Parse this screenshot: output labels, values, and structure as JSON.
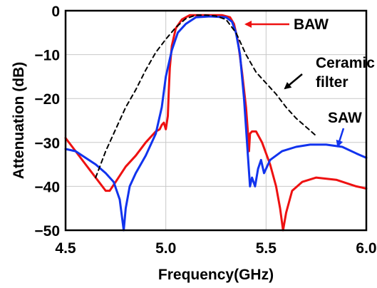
{
  "chart_data": {
    "type": "line",
    "title": "",
    "xlabel": "Frequency(GHz)",
    "ylabel": "Attenuation (dB)",
    "xlim": [
      4.5,
      6.0
    ],
    "ylim": [
      -50,
      0
    ],
    "x_ticks": [
      4.5,
      5.0,
      5.5,
      6.0
    ],
    "x_tick_labels": [
      "4.5",
      "5.0",
      "5.5",
      "6.0"
    ],
    "y_ticks": [
      0,
      -10,
      -20,
      -30,
      -40,
      -50
    ],
    "y_tick_labels": [
      "0",
      "−10",
      "−20",
      "−30",
      "−40",
      "−50"
    ],
    "grid": true,
    "legend": "none",
    "series": [
      {
        "name": "BAW",
        "color": "#ee1111",
        "style": "solid",
        "points": [
          [
            4.5,
            -29.0
          ],
          [
            4.55,
            -32.0
          ],
          [
            4.6,
            -35.0
          ],
          [
            4.65,
            -38.0
          ],
          [
            4.7,
            -41.0
          ],
          [
            4.72,
            -41.0
          ],
          [
            4.75,
            -39.0
          ],
          [
            4.8,
            -35.5
          ],
          [
            4.85,
            -33.0
          ],
          [
            4.9,
            -30.0
          ],
          [
            4.95,
            -27.5
          ],
          [
            4.97,
            -27.0
          ],
          [
            4.98,
            -26.0
          ],
          [
            4.99,
            -25.5
          ],
          [
            5.0,
            -27.0
          ],
          [
            5.01,
            -24.0
          ],
          [
            5.015,
            -18.0
          ],
          [
            5.02,
            -13.0
          ],
          [
            5.03,
            -8.0
          ],
          [
            5.05,
            -4.0
          ],
          [
            5.08,
            -2.0
          ],
          [
            5.12,
            -1.0
          ],
          [
            5.2,
            -1.0
          ],
          [
            5.28,
            -1.0
          ],
          [
            5.32,
            -1.5
          ],
          [
            5.34,
            -3.0
          ],
          [
            5.36,
            -7.0
          ],
          [
            5.38,
            -14.0
          ],
          [
            5.4,
            -22.0
          ],
          [
            5.41,
            -28.0
          ],
          [
            5.415,
            -32.0
          ],
          [
            5.42,
            -28.0
          ],
          [
            5.43,
            -27.5
          ],
          [
            5.45,
            -27.5
          ],
          [
            5.48,
            -30.0
          ],
          [
            5.52,
            -35.0
          ],
          [
            5.55,
            -40.0
          ],
          [
            5.57,
            -45.0
          ],
          [
            5.585,
            -50.0
          ],
          [
            5.6,
            -46.0
          ],
          [
            5.63,
            -41.0
          ],
          [
            5.68,
            -39.0
          ],
          [
            5.75,
            -38.0
          ],
          [
            5.85,
            -38.5
          ],
          [
            5.95,
            -40.0
          ],
          [
            6.0,
            -40.5
          ]
        ]
      },
      {
        "name": "SAW",
        "color": "#1133ee",
        "style": "solid",
        "points": [
          [
            4.5,
            -31.5
          ],
          [
            4.55,
            -32.0
          ],
          [
            4.6,
            -33.5
          ],
          [
            4.65,
            -35.0
          ],
          [
            4.7,
            -37.0
          ],
          [
            4.74,
            -39.0
          ],
          [
            4.77,
            -43.0
          ],
          [
            4.79,
            -50.0
          ],
          [
            4.8,
            -45.0
          ],
          [
            4.82,
            -40.0
          ],
          [
            4.85,
            -37.0
          ],
          [
            4.9,
            -33.0
          ],
          [
            4.95,
            -28.0
          ],
          [
            4.98,
            -22.0
          ],
          [
            5.0,
            -15.0
          ],
          [
            5.03,
            -9.0
          ],
          [
            5.06,
            -5.0
          ],
          [
            5.1,
            -3.0
          ],
          [
            5.15,
            -1.5
          ],
          [
            5.22,
            -1.3
          ],
          [
            5.3,
            -1.5
          ],
          [
            5.33,
            -2.5
          ],
          [
            5.35,
            -5.0
          ],
          [
            5.37,
            -10.0
          ],
          [
            5.39,
            -20.0
          ],
          [
            5.405,
            -30.0
          ],
          [
            5.42,
            -40.0
          ],
          [
            5.43,
            -38.0
          ],
          [
            5.445,
            -40.0
          ],
          [
            5.46,
            -36.0
          ],
          [
            5.475,
            -34.0
          ],
          [
            5.49,
            -37.0
          ],
          [
            5.52,
            -34.0
          ],
          [
            5.58,
            -32.0
          ],
          [
            5.65,
            -31.0
          ],
          [
            5.72,
            -30.5
          ],
          [
            5.8,
            -30.5
          ],
          [
            5.88,
            -31.0
          ],
          [
            5.95,
            -32.5
          ],
          [
            6.0,
            -33.5
          ]
        ]
      },
      {
        "name": "Ceramic filter",
        "color": "#000000",
        "style": "dashed",
        "points": [
          [
            4.65,
            -38.0
          ],
          [
            4.7,
            -32.0
          ],
          [
            4.75,
            -27.0
          ],
          [
            4.8,
            -22.0
          ],
          [
            4.85,
            -18.0
          ],
          [
            4.9,
            -13.5
          ],
          [
            4.95,
            -9.5
          ],
          [
            5.0,
            -6.5
          ],
          [
            5.05,
            -3.8
          ],
          [
            5.1,
            -1.8
          ],
          [
            5.15,
            -1.0
          ],
          [
            5.2,
            -1.0
          ],
          [
            5.25,
            -1.2
          ],
          [
            5.3,
            -2.0
          ],
          [
            5.35,
            -5.0
          ],
          [
            5.4,
            -10.0
          ],
          [
            5.45,
            -14.0
          ],
          [
            5.5,
            -16.5
          ],
          [
            5.55,
            -19.0
          ],
          [
            5.6,
            -22.0
          ],
          [
            5.65,
            -24.5
          ],
          [
            5.7,
            -26.5
          ],
          [
            5.75,
            -28.5
          ]
        ]
      }
    ],
    "annotations": [
      {
        "text": "BAW",
        "arrow": true
      },
      {
        "text": "Ceramic",
        "arrow": true
      },
      {
        "text": "filter",
        "arrow": false
      },
      {
        "text": "SAW",
        "arrow": true
      }
    ]
  }
}
